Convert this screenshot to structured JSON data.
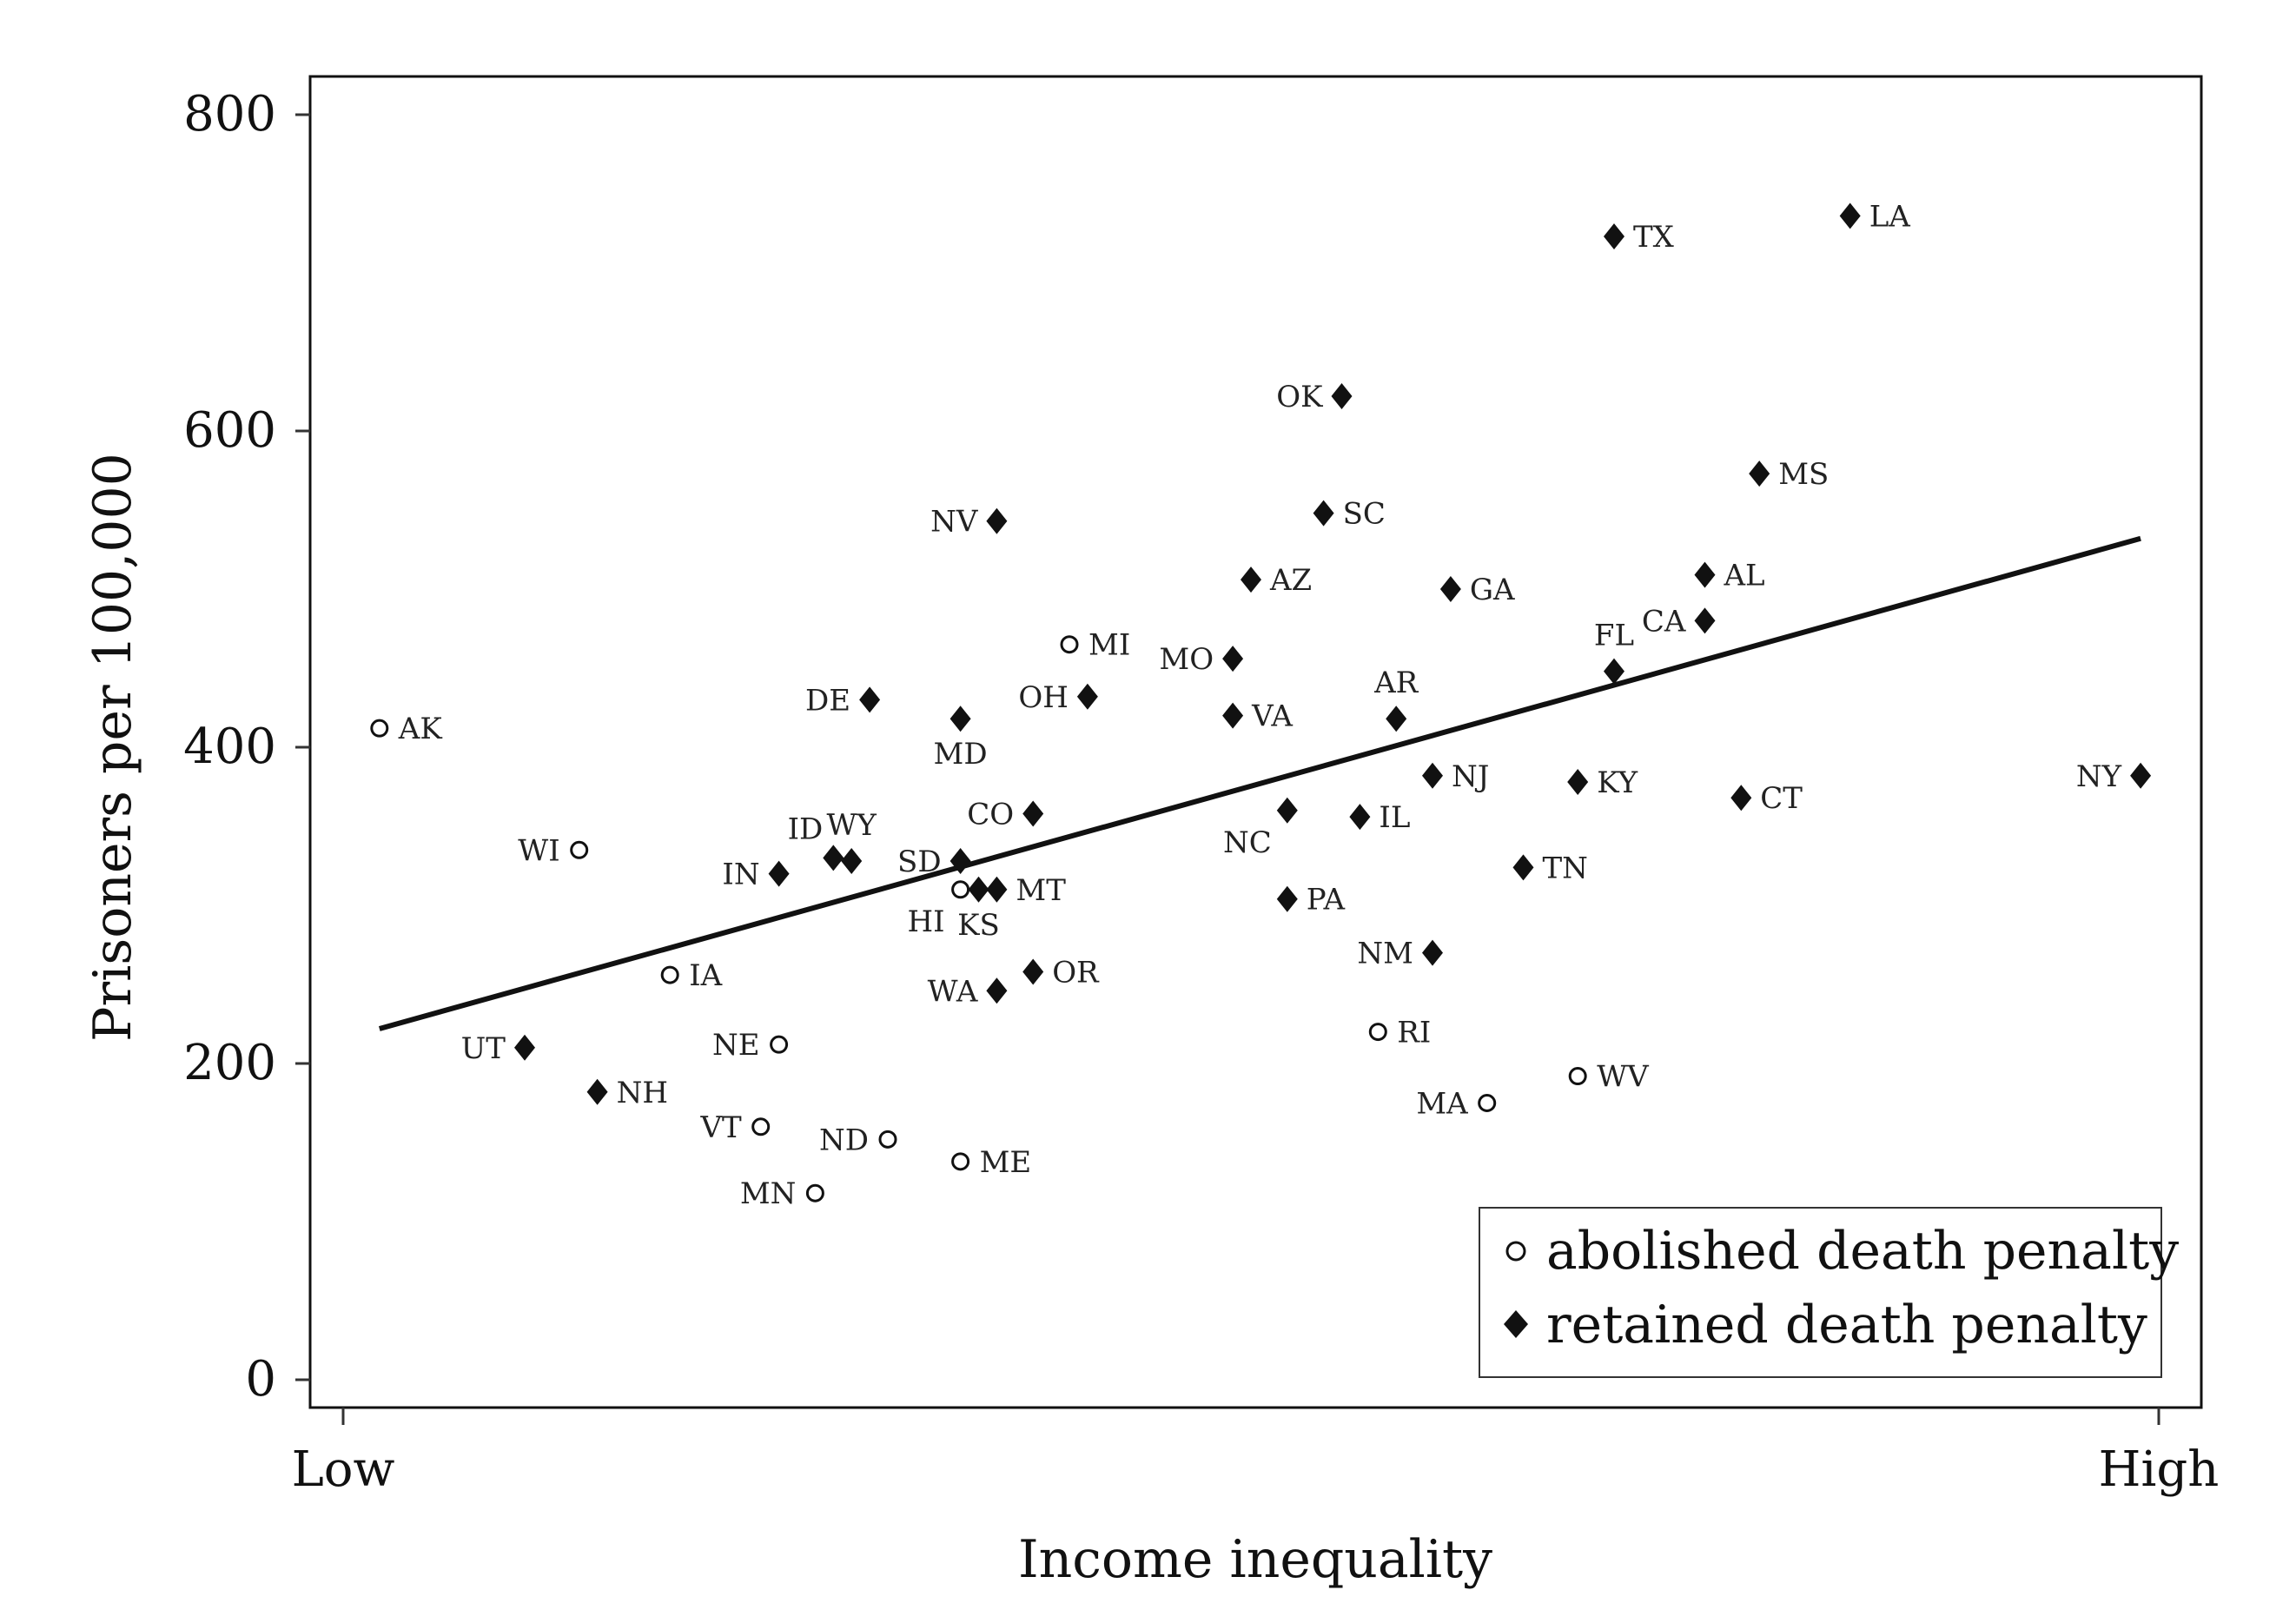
{
  "chart_data": {
    "type": "scatter",
    "title": "",
    "xlabel": "Income inequality",
    "ylabel": "Prisoners per 100,000",
    "x_tick_labels": [
      "Low",
      "High"
    ],
    "xlim": [
      0,
      1
    ],
    "ylim": [
      0,
      800
    ],
    "y_ticks": [
      0,
      200,
      400,
      600,
      800
    ],
    "grid": false,
    "legend_position": "bottom-right",
    "legend": [
      {
        "marker": "circle-open",
        "label": "abolished death penalty"
      },
      {
        "marker": "diamond-filled",
        "label": "retained death penalty"
      }
    ],
    "trend_line": {
      "x": [
        0.02,
        0.99
      ],
      "y": [
        222,
        532
      ]
    },
    "points": [
      {
        "state": "AK",
        "x": 0.02,
        "y": 412,
        "marker": "abolished",
        "label_side": "right"
      },
      {
        "state": "WI",
        "x": 0.13,
        "y": 335,
        "marker": "abolished",
        "label_side": "left"
      },
      {
        "state": "IA",
        "x": 0.18,
        "y": 256,
        "marker": "abolished",
        "label_side": "right"
      },
      {
        "state": "NE",
        "x": 0.24,
        "y": 212,
        "marker": "abolished",
        "label_side": "left"
      },
      {
        "state": "VT",
        "x": 0.23,
        "y": 160,
        "marker": "abolished",
        "label_side": "left"
      },
      {
        "state": "MN",
        "x": 0.26,
        "y": 118,
        "marker": "abolished",
        "label_side": "left"
      },
      {
        "state": "ND",
        "x": 0.3,
        "y": 152,
        "marker": "abolished",
        "label_side": "left"
      },
      {
        "state": "ME",
        "x": 0.34,
        "y": 138,
        "marker": "abolished",
        "label_side": "right"
      },
      {
        "state": "HI",
        "x": 0.34,
        "y": 310,
        "marker": "abolished",
        "label_side": "below-left"
      },
      {
        "state": "MI",
        "x": 0.4,
        "y": 465,
        "marker": "abolished",
        "label_side": "right"
      },
      {
        "state": "RI",
        "x": 0.57,
        "y": 220,
        "marker": "abolished",
        "label_side": "right"
      },
      {
        "state": "MA",
        "x": 0.63,
        "y": 175,
        "marker": "abolished",
        "label_side": "left"
      },
      {
        "state": "WV",
        "x": 0.68,
        "y": 192,
        "marker": "abolished",
        "label_side": "right"
      },
      {
        "state": "UT",
        "x": 0.1,
        "y": 210,
        "marker": "retained",
        "label_side": "left"
      },
      {
        "state": "NH",
        "x": 0.14,
        "y": 182,
        "marker": "retained",
        "label_side": "right"
      },
      {
        "state": "IN",
        "x": 0.24,
        "y": 320,
        "marker": "retained",
        "label_side": "left"
      },
      {
        "state": "ID",
        "x": 0.27,
        "y": 330,
        "marker": "retained",
        "label_side": "above-left"
      },
      {
        "state": "WY",
        "x": 0.28,
        "y": 328,
        "marker": "retained",
        "label_side": "above"
      },
      {
        "state": "DE",
        "x": 0.29,
        "y": 430,
        "marker": "retained",
        "label_side": "left"
      },
      {
        "state": "SD",
        "x": 0.34,
        "y": 328,
        "marker": "retained",
        "label_side": "left"
      },
      {
        "state": "KS",
        "x": 0.35,
        "y": 310,
        "marker": "retained",
        "label_side": "below"
      },
      {
        "state": "MT",
        "x": 0.36,
        "y": 310,
        "marker": "retained",
        "label_side": "right"
      },
      {
        "state": "MD",
        "x": 0.34,
        "y": 418,
        "marker": "retained",
        "label_side": "below"
      },
      {
        "state": "NV",
        "x": 0.36,
        "y": 543,
        "marker": "retained",
        "label_side": "left"
      },
      {
        "state": "CO",
        "x": 0.38,
        "y": 358,
        "marker": "retained",
        "label_side": "left"
      },
      {
        "state": "OH",
        "x": 0.41,
        "y": 432,
        "marker": "retained",
        "label_side": "left"
      },
      {
        "state": "WA",
        "x": 0.36,
        "y": 246,
        "marker": "retained",
        "label_side": "left"
      },
      {
        "state": "OR",
        "x": 0.38,
        "y": 258,
        "marker": "retained",
        "label_side": "right"
      },
      {
        "state": "MO",
        "x": 0.49,
        "y": 456,
        "marker": "retained",
        "label_side": "left"
      },
      {
        "state": "VA",
        "x": 0.49,
        "y": 420,
        "marker": "retained",
        "label_side": "right"
      },
      {
        "state": "AZ",
        "x": 0.5,
        "y": 506,
        "marker": "retained",
        "label_side": "right"
      },
      {
        "state": "NC",
        "x": 0.52,
        "y": 360,
        "marker": "retained",
        "label_side": "below-left"
      },
      {
        "state": "PA",
        "x": 0.52,
        "y": 304,
        "marker": "retained",
        "label_side": "right"
      },
      {
        "state": "OK",
        "x": 0.55,
        "y": 622,
        "marker": "retained",
        "label_side": "left"
      },
      {
        "state": "SC",
        "x": 0.54,
        "y": 548,
        "marker": "retained",
        "label_side": "right"
      },
      {
        "state": "IL",
        "x": 0.56,
        "y": 356,
        "marker": "retained",
        "label_side": "right"
      },
      {
        "state": "AR",
        "x": 0.58,
        "y": 418,
        "marker": "retained",
        "label_side": "above"
      },
      {
        "state": "NJ",
        "x": 0.6,
        "y": 382,
        "marker": "retained",
        "label_side": "right"
      },
      {
        "state": "NM",
        "x": 0.6,
        "y": 270,
        "marker": "retained",
        "label_side": "left"
      },
      {
        "state": "GA",
        "x": 0.61,
        "y": 500,
        "marker": "retained",
        "label_side": "right"
      },
      {
        "state": "TN",
        "x": 0.65,
        "y": 324,
        "marker": "retained",
        "label_side": "right"
      },
      {
        "state": "KY",
        "x": 0.68,
        "y": 378,
        "marker": "retained",
        "label_side": "right"
      },
      {
        "state": "FL",
        "x": 0.7,
        "y": 448,
        "marker": "retained",
        "label_side": "above"
      },
      {
        "state": "TX",
        "x": 0.7,
        "y": 723,
        "marker": "retained",
        "label_side": "right"
      },
      {
        "state": "CA",
        "x": 0.75,
        "y": 480,
        "marker": "retained",
        "label_side": "left"
      },
      {
        "state": "AL",
        "x": 0.75,
        "y": 509,
        "marker": "retained",
        "label_side": "right"
      },
      {
        "state": "MS",
        "x": 0.78,
        "y": 573,
        "marker": "retained",
        "label_side": "right"
      },
      {
        "state": "CT",
        "x": 0.77,
        "y": 368,
        "marker": "retained",
        "label_side": "right"
      },
      {
        "state": "LA",
        "x": 0.83,
        "y": 736,
        "marker": "retained",
        "label_side": "right"
      },
      {
        "state": "NY",
        "x": 0.99,
        "y": 382,
        "marker": "retained",
        "label_side": "left"
      }
    ]
  }
}
